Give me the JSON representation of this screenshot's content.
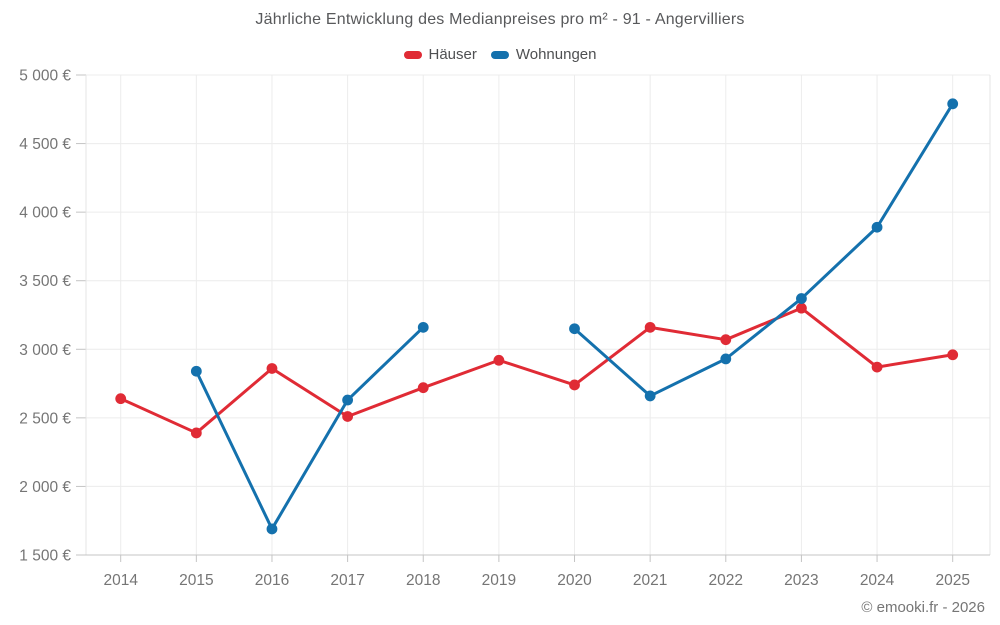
{
  "attribution": "© emooki.fr - 2026",
  "chart_data": {
    "type": "line",
    "title": "Jährliche Entwicklung des Medianpreises pro m² - 91 - Angervilliers",
    "categories": [
      "2014",
      "2015",
      "2016",
      "2017",
      "2018",
      "2019",
      "2020",
      "2021",
      "2022",
      "2023",
      "2024",
      "2025"
    ],
    "series": [
      {
        "name": "Häuser",
        "color": "#e02b35",
        "values": [
          2640,
          2390,
          2860,
          2510,
          2720,
          2920,
          2740,
          3160,
          3070,
          3300,
          2870,
          2960
        ]
      },
      {
        "name": "Wohnungen",
        "color": "#1471ad",
        "values": [
          null,
          2840,
          1690,
          2630,
          3160,
          null,
          3150,
          2660,
          2930,
          3370,
          3890,
          4790
        ]
      }
    ],
    "ylim": [
      1500,
      5000
    ],
    "ytick_values": [
      1500,
      2000,
      2500,
      3000,
      3500,
      4000,
      4500,
      5000
    ],
    "ytick_labels": [
      "1 500 €",
      "2 000 €",
      "2 500 €",
      "3 000 €",
      "3 500 €",
      "4 000 €",
      "4 500 €",
      "5 000 €"
    ],
    "grid": true,
    "legend_position": "top",
    "colors": {
      "grid_line": "#ececec",
      "axis_line": "#c4c4c4",
      "plot_border": "#e4e4e4",
      "tick_label": "#757575",
      "title_text": "#58595b",
      "legend_text": "#4f5052",
      "attribution_text": "#767676"
    }
  }
}
